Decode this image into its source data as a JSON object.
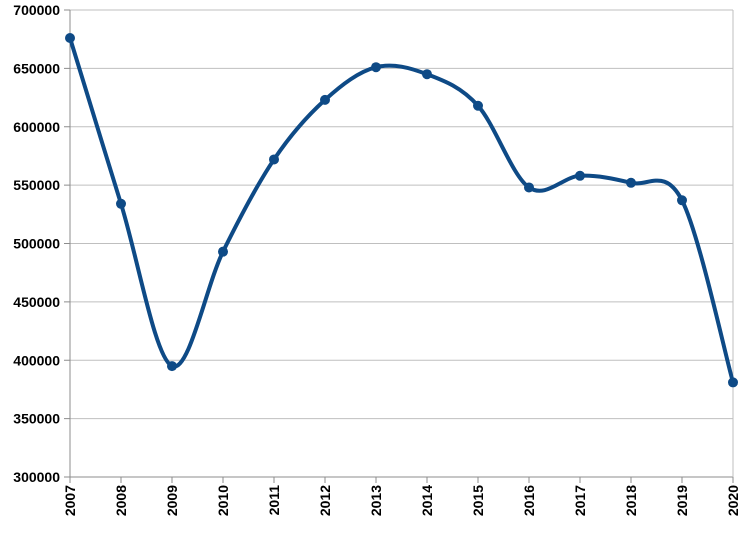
{
  "chart_data": {
    "type": "line",
    "title": "",
    "xlabel": "",
    "ylabel": "",
    "x": [
      "2007",
      "2008",
      "2009",
      "2010",
      "2011",
      "2012",
      "2013",
      "2014",
      "2015",
      "2016",
      "2017",
      "2018",
      "2019",
      "2020"
    ],
    "series": [
      {
        "values": [
          676000,
          534000,
          395000,
          493000,
          572000,
          623000,
          651000,
          645000,
          618000,
          548000,
          558000,
          552000,
          537000,
          381000
        ],
        "color": "#0e4a86",
        "smooth": true,
        "markers": true
      }
    ],
    "ylim": [
      300000,
      700000
    ],
    "yticks": [
      "300000",
      "350000",
      "400000",
      "450000",
      "500000",
      "550000",
      "600000",
      "650000",
      "700000"
    ],
    "grid": "horizontal",
    "legend": "none",
    "colors": {
      "grid": "#bfbfbf",
      "axis": "#8c8c8c",
      "line": "#0e4a86"
    }
  }
}
